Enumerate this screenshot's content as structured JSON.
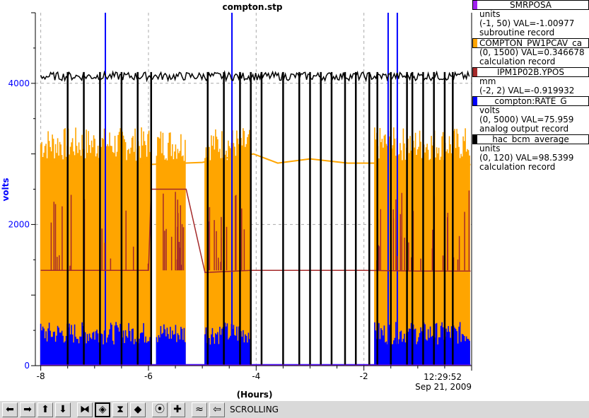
{
  "chart_data": {
    "type": "line",
    "title": "compton.stp",
    "xlabel": "(Hours)",
    "ylabel": "volts",
    "xlim": [
      -8.1,
      0
    ],
    "ylim": [
      0,
      5000
    ],
    "x_ticks": [
      -8,
      -6,
      -4,
      -2
    ],
    "x_tick_labels": [
      "-8",
      "-6",
      "-4",
      "-2"
    ],
    "y_ticks": [
      0,
      2000,
      4000
    ],
    "y_tick_labels": [
      "0",
      "2000",
      "4000"
    ],
    "grid": true,
    "end_time": "12:29:52",
    "end_date": "Sep 21, 2009",
    "series": [
      {
        "name": "SMRPOSA",
        "color": "#a020f0",
        "units": "units",
        "range": "(-1, 50)",
        "val": "VAL=-1.00977",
        "record": "subroutine record"
      },
      {
        "name": "COMPTON_PW1PCAV_ca",
        "color": "#ffa500",
        "units": "",
        "range": "(0, 1500)",
        "val": "VAL=0.346678",
        "record": "calculation record"
      },
      {
        "name": "IPM1P02B.YPOS",
        "color": "#a52a2a",
        "units": "mm",
        "range": "(-2, 2)",
        "val": "VAL=-0.919932",
        "record": ""
      },
      {
        "name": "compton:RATE_G",
        "color": "#0000ff",
        "units": "volts",
        "range": "(0, 5000)",
        "val": "VAL=75.959",
        "record": "analog output record"
      },
      {
        "name": "hac_bcm_average",
        "color": "#000000",
        "units": "units",
        "range": "(0, 120)",
        "val": "VAL=98.5399",
        "record": "calculation record"
      }
    ],
    "orange_band_segments": [
      [
        -8.0,
        -5.95
      ],
      [
        -5.85,
        -5.3
      ],
      [
        -4.95,
        -4.1
      ],
      [
        -1.8,
        -1.2
      ],
      [
        -1.2,
        -0.02
      ]
    ],
    "orange_band_range": [
      2900,
      3380
    ],
    "orange_trend": [
      [
        -8.0,
        2900
      ],
      [
        -6.0,
        2850
      ],
      [
        -5.0,
        2880
      ],
      [
        -4.5,
        2950
      ],
      [
        -4.05,
        3000
      ],
      [
        -3.6,
        2870
      ],
      [
        -3.0,
        2930
      ],
      [
        -2.3,
        2870
      ],
      [
        -1.7,
        2870
      ],
      [
        -1.0,
        2800
      ],
      [
        -0.7,
        2800
      ],
      [
        -0.02,
        2850
      ]
    ],
    "blue_band_segments": [
      [
        -8.0,
        -5.95
      ],
      [
        -5.85,
        -5.3
      ],
      [
        -4.95,
        -4.1
      ],
      [
        -1.8,
        -1.2
      ],
      [
        -1.2,
        -0.02
      ]
    ],
    "blue_band_range": [
      300,
      620
    ],
    "blue_spikes": [
      -6.8,
      -4.45,
      -1.55,
      -1.38
    ],
    "brown_trend": [
      [
        -8.0,
        1350
      ],
      [
        -6.0,
        1350
      ],
      [
        -5.95,
        2500
      ],
      [
        -5.3,
        2500
      ],
      [
        -4.95,
        1320
      ],
      [
        -4.1,
        1350
      ],
      [
        -3.7,
        1350
      ],
      [
        -3.0,
        1350
      ],
      [
        -2.0,
        1350
      ],
      [
        -1.0,
        1340
      ],
      [
        -0.02,
        1340
      ]
    ],
    "black_level": 4100,
    "black_dropouts": [
      -7.5,
      -7.2,
      -6.9,
      -6.5,
      -6.2,
      -5.95,
      -4.9,
      -4.6,
      -4.3,
      -4.1,
      -3.9,
      -3.5,
      -3.2,
      -3.0,
      -2.8,
      -2.6,
      -2.35,
      -2.15,
      -1.9,
      -1.75,
      -1.5,
      -1.2,
      -1.1,
      -0.9,
      -0.7,
      -0.5,
      -0.35
    ]
  },
  "toolbar": {
    "status": "SCROLLING",
    "buttons": [
      {
        "name": "scroll-left",
        "glyph": "⬅"
      },
      {
        "name": "scroll-right",
        "glyph": "➡"
      },
      {
        "name": "scroll-up",
        "glyph": "⬆"
      },
      {
        "name": "scroll-down",
        "glyph": "⬇"
      },
      {
        "name": "zoom-in-x",
        "glyph": "⧓"
      },
      {
        "name": "zoom-out-x",
        "glyph": "◈"
      },
      {
        "name": "zoom-in-y",
        "glyph": "⧗"
      },
      {
        "name": "zoom-out-y",
        "glyph": "◆"
      },
      {
        "name": "reset",
        "glyph": "⦿"
      },
      {
        "name": "add",
        "glyph": "✚"
      },
      {
        "name": "autoscale",
        "glyph": "≈"
      },
      {
        "name": "back",
        "glyph": "⇦"
      }
    ]
  }
}
